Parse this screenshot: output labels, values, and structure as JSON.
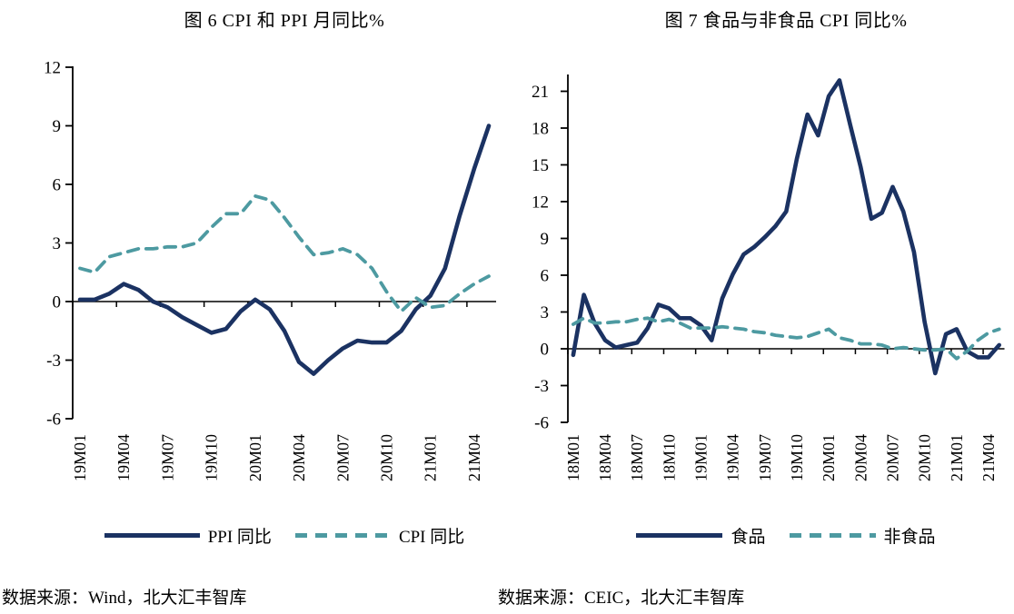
{
  "chart_data": [
    {
      "type": "line",
      "title": "图 6 CPI 和 PPI 月同比%",
      "source": "数据来源：Wind，北大汇丰智库",
      "x": [
        "19M01",
        "19M02",
        "19M03",
        "19M04",
        "19M05",
        "19M06",
        "19M07",
        "19M08",
        "19M09",
        "19M10",
        "19M11",
        "19M12",
        "20M01",
        "20M02",
        "20M03",
        "20M04",
        "20M05",
        "20M06",
        "20M07",
        "20M08",
        "20M09",
        "20M10",
        "20M11",
        "20M12",
        "21M01",
        "21M02",
        "21M03",
        "21M04",
        "21M05"
      ],
      "x_tick_labels": [
        "19M01",
        "19M04",
        "19M07",
        "19M10",
        "20M01",
        "20M04",
        "20M07",
        "20M10",
        "21M01",
        "21M04"
      ],
      "ylim": [
        -6,
        12
      ],
      "yticks": [
        -6,
        -3,
        0,
        3,
        6,
        9,
        12
      ],
      "grid": false,
      "legend_position": "bottom",
      "series": [
        {
          "name": "PPI 同比",
          "style": "solid",
          "color": "#1b3262",
          "values": [
            0.1,
            0.1,
            0.4,
            0.9,
            0.6,
            0.0,
            -0.3,
            -0.8,
            -1.2,
            -1.6,
            -1.4,
            -0.5,
            0.1,
            -0.4,
            -1.5,
            -3.1,
            -3.7,
            -3.0,
            -2.4,
            -2.0,
            -2.1,
            -2.1,
            -1.5,
            -0.4,
            0.3,
            1.7,
            4.4,
            6.8,
            9.0
          ]
        },
        {
          "name": "CPI 同比",
          "style": "dashed",
          "color": "#4d9aa1",
          "values": [
            1.7,
            1.5,
            2.3,
            2.5,
            2.7,
            2.7,
            2.8,
            2.8,
            3.0,
            3.8,
            4.5,
            4.5,
            5.4,
            5.2,
            4.3,
            3.3,
            2.4,
            2.5,
            2.7,
            2.4,
            1.7,
            0.5,
            -0.5,
            0.2,
            -0.3,
            -0.2,
            0.4,
            0.9,
            1.3
          ]
        }
      ]
    },
    {
      "type": "line",
      "title": "图 7 食品与非食品 CPI 同比%",
      "source": "数据来源：CEIC，北大汇丰智库",
      "x": [
        "18M01",
        "18M02",
        "18M03",
        "18M04",
        "18M05",
        "18M06",
        "18M07",
        "18M08",
        "18M09",
        "18M10",
        "18M11",
        "18M12",
        "19M01",
        "19M02",
        "19M03",
        "19M04",
        "19M05",
        "19M06",
        "19M07",
        "19M08",
        "19M09",
        "19M10",
        "19M11",
        "19M12",
        "20M01",
        "20M02",
        "20M03",
        "20M04",
        "20M05",
        "20M06",
        "20M07",
        "20M08",
        "20M09",
        "20M10",
        "20M11",
        "20M12",
        "21M01",
        "21M02",
        "21M03",
        "21M04",
        "21M05"
      ],
      "x_tick_labels": [
        "18M01",
        "18M04",
        "18M07",
        "18M10",
        "19M01",
        "19M04",
        "19M07",
        "19M10",
        "20M01",
        "20M04",
        "20M07",
        "20M10",
        "21M01",
        "21M04"
      ],
      "ylim": [
        -6,
        21
      ],
      "yticks": [
        -6,
        -3,
        0,
        3,
        6,
        9,
        12,
        15,
        18,
        21
      ],
      "grid": false,
      "legend_position": "bottom",
      "series": [
        {
          "name": "食品",
          "style": "solid",
          "color": "#1b3262",
          "values": [
            -0.5,
            4.4,
            2.1,
            0.7,
            0.1,
            0.3,
            0.5,
            1.7,
            3.6,
            3.3,
            2.5,
            2.5,
            1.9,
            0.7,
            4.1,
            6.1,
            7.7,
            8.3,
            9.1,
            10.0,
            11.2,
            15.5,
            19.1,
            17.4,
            20.6,
            21.9,
            18.3,
            14.8,
            10.6,
            11.1,
            13.2,
            11.2,
            7.9,
            2.2,
            -2.0,
            1.2,
            1.6,
            -0.2,
            -0.7,
            -0.7,
            0.3
          ]
        },
        {
          "name": "非食品",
          "style": "dashed",
          "color": "#4d9aa1",
          "values": [
            2.0,
            2.5,
            2.1,
            2.1,
            2.2,
            2.2,
            2.4,
            2.5,
            2.2,
            2.4,
            2.1,
            1.7,
            1.7,
            1.7,
            1.8,
            1.7,
            1.6,
            1.4,
            1.3,
            1.1,
            1.0,
            0.9,
            1.0,
            1.3,
            1.6,
            0.9,
            0.7,
            0.4,
            0.4,
            0.3,
            0.0,
            0.1,
            0.0,
            -0.1,
            -0.1,
            0.0,
            -0.8,
            -0.2,
            0.7,
            1.3,
            1.6
          ]
        }
      ]
    }
  ]
}
